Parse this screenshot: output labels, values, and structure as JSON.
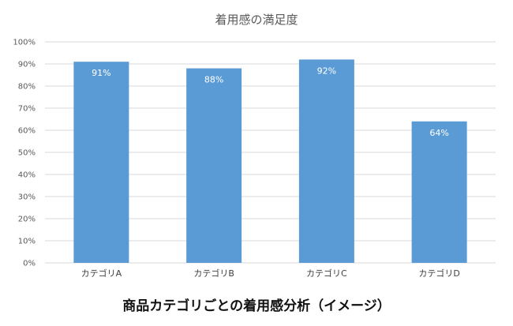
{
  "chart_data": {
    "type": "bar",
    "title": "着用感の満足度",
    "caption": "商品カテゴリごとの着用感分析（イメージ）",
    "categories": [
      "カテゴリA",
      "カテゴリB",
      "カテゴリC",
      "カテゴリD"
    ],
    "values": [
      91,
      88,
      92,
      64
    ],
    "value_labels": [
      "91%",
      "88%",
      "92%",
      "64%"
    ],
    "ylim": [
      0,
      100
    ],
    "yticks": [
      0,
      10,
      20,
      30,
      40,
      50,
      60,
      70,
      80,
      90,
      100
    ],
    "ytick_labels": [
      "0%",
      "10%",
      "20%",
      "30%",
      "40%",
      "50%",
      "60%",
      "70%",
      "80%",
      "90%",
      "100%"
    ],
    "grid": true,
    "bar_color": "#5b9bd5",
    "grid_color": "#d9d9d9"
  }
}
